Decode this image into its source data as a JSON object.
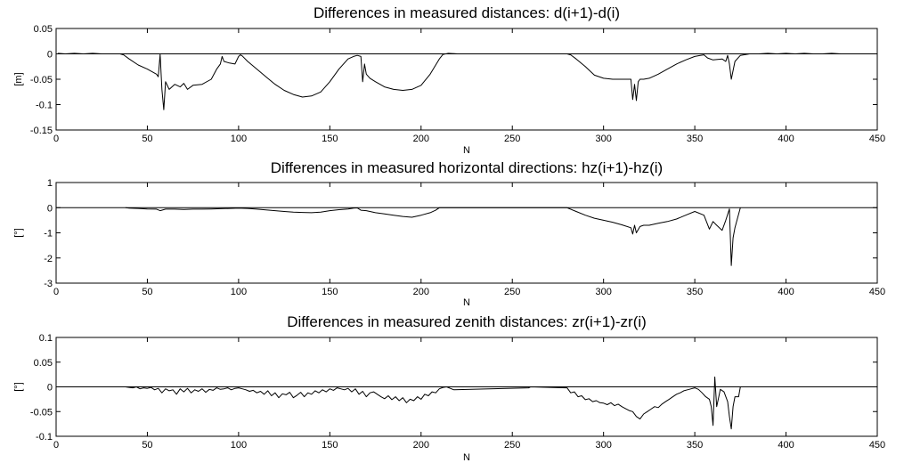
{
  "chart_data": [
    {
      "type": "line",
      "title": "Differences in measured distances: d(i+1)-d(i)",
      "xlabel": "N",
      "ylabel": "[m]",
      "xlim": [
        0,
        450
      ],
      "ylim": [
        -0.15,
        0.05
      ],
      "xticks": [
        0,
        50,
        100,
        150,
        200,
        250,
        300,
        350,
        400,
        450
      ],
      "yticks": [
        -0.15,
        -0.1,
        -0.05,
        0,
        0.05
      ],
      "ytick_labels": [
        "-0.15",
        "-0.1",
        "-0.05",
        "0",
        "0.05"
      ],
      "grid": false,
      "reference_line": 0,
      "x": [
        1,
        5,
        10,
        15,
        20,
        25,
        30,
        35,
        37,
        40,
        45,
        50,
        55,
        56,
        57,
        58,
        59,
        60,
        62,
        65,
        68,
        70,
        72,
        75,
        80,
        85,
        88,
        90,
        91,
        92,
        95,
        98,
        100,
        101,
        102,
        105,
        110,
        115,
        120,
        125,
        130,
        135,
        140,
        145,
        150,
        155,
        160,
        163,
        165,
        167,
        168,
        169,
        170,
        172,
        175,
        180,
        185,
        190,
        195,
        200,
        205,
        210,
        212,
        215,
        220,
        225,
        230,
        235,
        240,
        245,
        250,
        255,
        260,
        265,
        270,
        275,
        280,
        282,
        285,
        290,
        295,
        300,
        305,
        310,
        315,
        316,
        317,
        318,
        319,
        320,
        322,
        325,
        330,
        335,
        340,
        345,
        350,
        353,
        355,
        357,
        360,
        365,
        367,
        368,
        369,
        370,
        372,
        375,
        380,
        385,
        390,
        395,
        400,
        405,
        410,
        415,
        420,
        425,
        430,
        435,
        440
      ],
      "y": [
        0.001,
        0,
        0.001,
        0,
        0.001,
        0,
        0,
        0,
        -0.002,
        -0.01,
        -0.022,
        -0.03,
        -0.04,
        -0.045,
        -0.001,
        -0.07,
        -0.11,
        -0.055,
        -0.07,
        -0.06,
        -0.065,
        -0.058,
        -0.07,
        -0.062,
        -0.06,
        -0.05,
        -0.03,
        -0.02,
        -0.005,
        -0.015,
        -0.018,
        -0.02,
        -0.005,
        -0.002,
        -0.004,
        -0.015,
        -0.03,
        -0.045,
        -0.06,
        -0.072,
        -0.08,
        -0.085,
        -0.083,
        -0.075,
        -0.055,
        -0.03,
        -0.01,
        -0.005,
        -0.003,
        -0.005,
        -0.055,
        -0.02,
        -0.04,
        -0.048,
        -0.055,
        -0.065,
        -0.07,
        -0.072,
        -0.07,
        -0.062,
        -0.04,
        -0.01,
        -0.001,
        0.001,
        0,
        0,
        0,
        0,
        0,
        0,
        0,
        0,
        0,
        0,
        0,
        0,
        0,
        -0.002,
        -0.01,
        -0.025,
        -0.042,
        -0.048,
        -0.05,
        -0.05,
        -0.05,
        -0.09,
        -0.06,
        -0.092,
        -0.055,
        -0.05,
        -0.05,
        -0.048,
        -0.04,
        -0.03,
        -0.02,
        -0.012,
        -0.005,
        -0.003,
        -0.002,
        -0.008,
        -0.012,
        -0.01,
        -0.015,
        -0.003,
        -0.02,
        -0.05,
        -0.015,
        -0.003,
        0,
        0,
        0.001,
        0,
        0.001,
        0,
        0.001,
        0,
        0,
        0.001,
        0,
        0,
        0
      ]
    },
    {
      "type": "line",
      "title": "Differences in measured horizontal directions: hz(i+1)-hz(i)",
      "xlabel": "N",
      "ylabel": "[°]",
      "xlim": [
        0,
        450
      ],
      "ylim": [
        -3,
        1
      ],
      "xticks": [
        0,
        50,
        100,
        150,
        200,
        250,
        300,
        350,
        400,
        450
      ],
      "yticks": [
        -3,
        -2,
        -1,
        0,
        1
      ],
      "ytick_labels": [
        "-3",
        "-2",
        "-1",
        "0",
        "1"
      ],
      "grid": false,
      "reference_line": 0,
      "x": [
        38,
        40,
        45,
        50,
        55,
        57,
        60,
        65,
        70,
        75,
        80,
        85,
        90,
        95,
        100,
        105,
        110,
        115,
        120,
        125,
        130,
        135,
        140,
        145,
        150,
        155,
        160,
        163,
        165,
        167,
        170,
        175,
        180,
        185,
        190,
        195,
        200,
        205,
        208,
        210,
        280,
        285,
        290,
        295,
        300,
        305,
        310,
        315,
        316,
        317,
        318,
        320,
        322,
        325,
        330,
        335,
        340,
        345,
        350,
        355,
        358,
        360,
        362,
        365,
        367,
        369,
        370,
        371,
        372,
        375
      ],
      "y": [
        0,
        -0.02,
        -0.03,
        -0.05,
        -0.06,
        -0.12,
        -0.06,
        -0.06,
        -0.07,
        -0.06,
        -0.06,
        -0.05,
        -0.04,
        -0.03,
        -0.02,
        -0.03,
        -0.06,
        -0.09,
        -0.12,
        -0.15,
        -0.18,
        -0.19,
        -0.2,
        -0.18,
        -0.12,
        -0.08,
        -0.05,
        -0.02,
        -0.01,
        -0.1,
        -0.12,
        -0.2,
        -0.25,
        -0.3,
        -0.35,
        -0.38,
        -0.3,
        -0.2,
        -0.1,
        0,
        0,
        -0.15,
        -0.3,
        -0.42,
        -0.5,
        -0.58,
        -0.68,
        -0.8,
        -1.05,
        -0.7,
        -1.0,
        -0.75,
        -0.7,
        -0.7,
        -0.62,
        -0.55,
        -0.45,
        -0.3,
        -0.15,
        -0.3,
        -0.85,
        -0.55,
        -0.7,
        -0.9,
        -0.5,
        -0.05,
        -2.3,
        -1.2,
        -0.8,
        0
      ]
    },
    {
      "type": "line",
      "title": "Differences in measured zenith distances: zr(i+1)-zr(i)",
      "xlabel": "N",
      "ylabel": "[°]",
      "xlim": [
        0,
        450
      ],
      "ylim": [
        -0.1,
        0.1
      ],
      "xticks": [
        0,
        50,
        100,
        150,
        200,
        250,
        300,
        350,
        400,
        450
      ],
      "yticks": [
        -0.1,
        -0.05,
        0,
        0.05,
        0.1
      ],
      "ytick_labels": [
        "-0.1",
        "-0.05",
        "0",
        "0.05",
        "0.1"
      ],
      "grid": false,
      "reference_line": 0,
      "x": [
        38,
        40,
        42,
        44,
        46,
        48,
        50,
        52,
        54,
        56,
        58,
        60,
        62,
        64,
        66,
        68,
        70,
        72,
        74,
        76,
        78,
        80,
        82,
        84,
        86,
        88,
        90,
        92,
        94,
        96,
        98,
        100,
        102,
        104,
        106,
        108,
        110,
        112,
        114,
        116,
        118,
        120,
        122,
        124,
        126,
        128,
        130,
        132,
        134,
        136,
        138,
        140,
        142,
        144,
        146,
        148,
        150,
        152,
        154,
        156,
        158,
        160,
        162,
        164,
        166,
        168,
        170,
        172,
        174,
        176,
        178,
        180,
        182,
        184,
        186,
        188,
        190,
        192,
        194,
        196,
        198,
        200,
        202,
        204,
        206,
        208,
        210,
        212,
        214,
        216,
        218,
        259,
        260,
        280,
        282,
        284,
        286,
        288,
        290,
        292,
        294,
        296,
        298,
        300,
        302,
        304,
        306,
        308,
        310,
        312,
        314,
        316,
        318,
        320,
        322,
        324,
        326,
        328,
        330,
        332,
        334,
        336,
        338,
        340,
        342,
        344,
        346,
        348,
        350,
        352,
        354,
        356,
        358,
        359,
        360,
        361,
        362,
        364,
        366,
        368,
        369,
        370,
        371,
        372,
        374,
        375
      ],
      "y": [
        0,
        -0.001,
        -0.002,
        0,
        -0.004,
        -0.002,
        -0.003,
        -0.001,
        -0.006,
        -0.003,
        -0.012,
        -0.004,
        -0.008,
        -0.006,
        -0.015,
        -0.004,
        -0.01,
        -0.003,
        -0.012,
        -0.006,
        -0.009,
        -0.004,
        -0.011,
        -0.005,
        -0.007,
        -0.002,
        -0.005,
        -0.004,
        -0.002,
        -0.006,
        -0.003,
        -0.002,
        -0.004,
        -0.006,
        -0.009,
        -0.007,
        -0.012,
        -0.009,
        -0.015,
        -0.008,
        -0.018,
        -0.012,
        -0.022,
        -0.014,
        -0.016,
        -0.011,
        -0.022,
        -0.017,
        -0.011,
        -0.02,
        -0.012,
        -0.015,
        -0.008,
        -0.012,
        -0.006,
        -0.01,
        -0.004,
        -0.007,
        -0.002,
        -0.004,
        -0.006,
        -0.003,
        -0.01,
        -0.004,
        -0.015,
        -0.009,
        -0.02,
        -0.012,
        -0.01,
        -0.015,
        -0.02,
        -0.024,
        -0.018,
        -0.026,
        -0.02,
        -0.028,
        -0.022,
        -0.032,
        -0.025,
        -0.028,
        -0.02,
        -0.025,
        -0.015,
        -0.018,
        -0.01,
        -0.012,
        -0.004,
        -0.001,
        0,
        -0.003,
        -0.006,
        -0.002,
        0,
        -0.002,
        -0.012,
        -0.01,
        -0.02,
        -0.018,
        -0.026,
        -0.024,
        -0.03,
        -0.028,
        -0.032,
        -0.033,
        -0.036,
        -0.032,
        -0.038,
        -0.035,
        -0.04,
        -0.044,
        -0.048,
        -0.05,
        -0.06,
        -0.065,
        -0.055,
        -0.05,
        -0.045,
        -0.04,
        -0.042,
        -0.035,
        -0.03,
        -0.025,
        -0.02,
        -0.015,
        -0.012,
        -0.008,
        -0.006,
        -0.004,
        -0.002,
        -0.005,
        -0.012,
        -0.02,
        -0.025,
        -0.04,
        -0.078,
        0.02,
        -0.04,
        -0.005,
        -0.01,
        -0.03,
        -0.06,
        -0.085,
        -0.04,
        -0.02,
        -0.02,
        0
      ]
    }
  ]
}
